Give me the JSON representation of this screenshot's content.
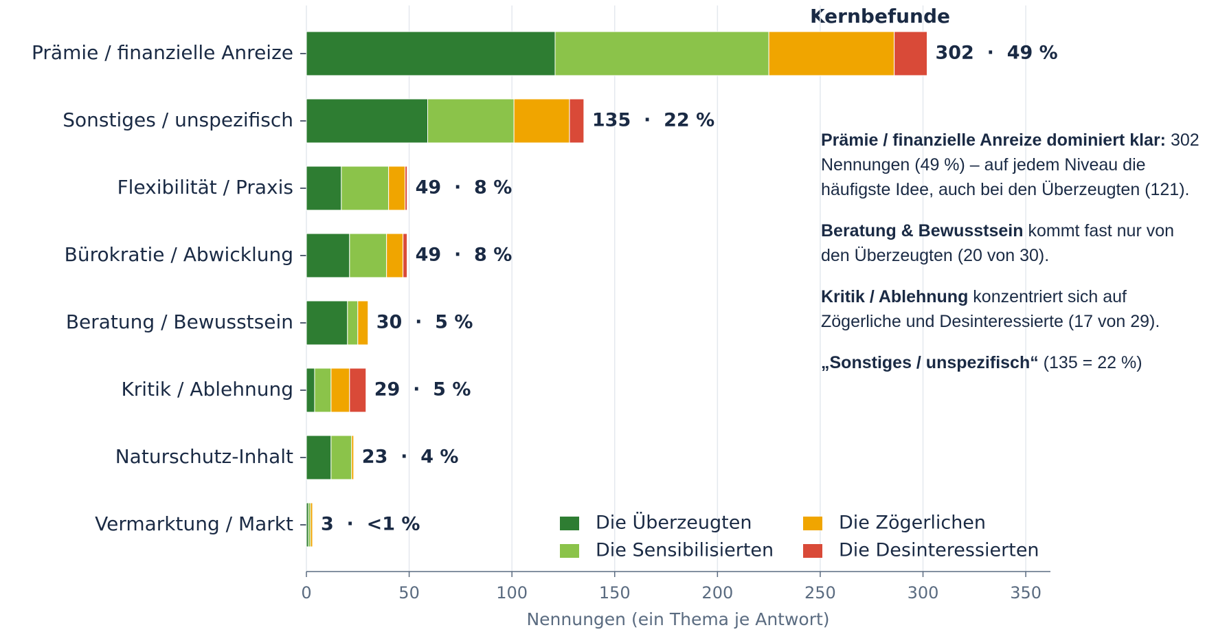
{
  "chart_data": {
    "type": "stacked_barh",
    "title": "Kernbefunde",
    "xlabel": "Nennungen (ein Thema je Antwort)",
    "categories": [
      "Prämie / finanzielle Anreize",
      "Sonstiges / unspezifisch",
      "Flexibilität / Praxis",
      "Bürokratie / Abwicklung",
      "Beratung / Bewusstsein",
      "Kritik / Ablehnung",
      "Naturschutz-Inhalt",
      "Vermarktung / Markt"
    ],
    "series": [
      {
        "name": "Die Überzeugten",
        "color": "#2e7d32",
        "values": [
          121,
          59,
          17,
          21,
          20,
          4,
          12,
          1
        ]
      },
      {
        "name": "Die Sensibilisierten",
        "color": "#8bc34a",
        "values": [
          104,
          42,
          23,
          18,
          5,
          8,
          10,
          1
        ]
      },
      {
        "name": "Die Zögerlichen",
        "color": "#f0a500",
        "values": [
          61,
          27,
          8,
          8,
          5,
          9,
          1,
          1
        ]
      },
      {
        "name": "Die Desinteressierten",
        "color": "#d94a38",
        "values": [
          16,
          7,
          1,
          2,
          0,
          8,
          0,
          0
        ]
      }
    ],
    "totals": [
      302,
      135,
      49,
      49,
      30,
      29,
      23,
      3
    ],
    "total_labels": [
      "302  ·  49 %",
      "135  ·  22 %",
      "49  ·  8 %",
      "49  ·  8 %",
      "30  ·  5 %",
      "29  ·  5 %",
      "23  ·  4 %",
      "3  ·  <1 %"
    ],
    "xlim": [
      0,
      362
    ],
    "xticks": [
      0,
      50,
      100,
      150,
      200,
      250,
      300,
      350
    ],
    "grid": true,
    "legend": "lower right",
    "annotations": [
      {
        "bold": "Prämie / finanzielle Anreize dominiert klar:",
        "text": " 302 Nennungen (49 %) – auf jedem Niveau die häufigste Idee, auch bei den Überzeugten (121)."
      },
      {
        "bold": "Beratung & Bewusstsein",
        "text": " kommt fast nur von den Überzeugten (20 von 30)."
      },
      {
        "bold": "Kritik / Ablehnung",
        "text": " konzentriert sich auf Zögerliche und Desinteressierte (17 von 29)."
      },
      {
        "bold": "„Sonstiges / unspezifisch“",
        "text": " (135 = 22 %)"
      }
    ]
  }
}
